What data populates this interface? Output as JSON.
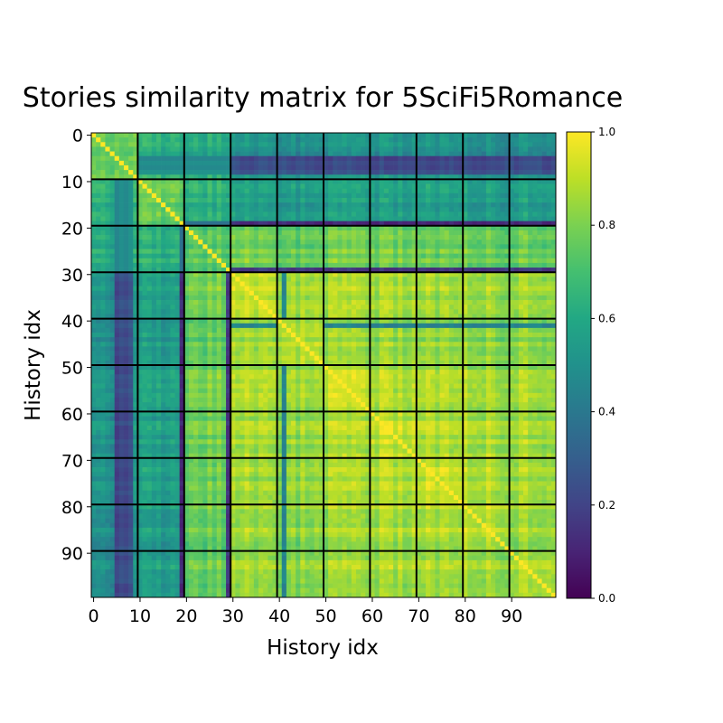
{
  "chart_data": {
    "type": "heatmap",
    "title": "Stories similarity matrix for 5SciFi5Romance",
    "xlabel": "History idx",
    "ylabel": "History idx",
    "size": 100,
    "block_size": 10,
    "x_ticks": [
      0,
      10,
      20,
      30,
      40,
      50,
      60,
      70,
      80,
      90
    ],
    "y_ticks": [
      0,
      10,
      20,
      30,
      40,
      50,
      60,
      70,
      80,
      90
    ],
    "colorbar": {
      "min": 0.0,
      "max": 1.0,
      "ticks": [
        "0.0",
        "0.2",
        "0.4",
        "0.6",
        "0.8",
        "1.0"
      ]
    },
    "colormap": "viridis",
    "block_means": [
      [
        0.74,
        0.62,
        0.6,
        0.5,
        0.47,
        0.5,
        0.5,
        0.5,
        0.48,
        0.49
      ],
      [
        0.62,
        0.76,
        0.63,
        0.55,
        0.53,
        0.55,
        0.55,
        0.55,
        0.54,
        0.55
      ],
      [
        0.6,
        0.63,
        0.74,
        0.78,
        0.75,
        0.78,
        0.78,
        0.77,
        0.77,
        0.77
      ],
      [
        0.5,
        0.55,
        0.78,
        0.9,
        0.85,
        0.86,
        0.86,
        0.85,
        0.85,
        0.85
      ],
      [
        0.47,
        0.53,
        0.75,
        0.85,
        0.87,
        0.83,
        0.83,
        0.83,
        0.82,
        0.82
      ],
      [
        0.5,
        0.55,
        0.78,
        0.86,
        0.83,
        0.89,
        0.86,
        0.86,
        0.85,
        0.85
      ],
      [
        0.5,
        0.55,
        0.78,
        0.86,
        0.83,
        0.86,
        0.9,
        0.87,
        0.87,
        0.86
      ],
      [
        0.5,
        0.55,
        0.77,
        0.85,
        0.83,
        0.86,
        0.87,
        0.9,
        0.87,
        0.86
      ],
      [
        0.48,
        0.54,
        0.77,
        0.85,
        0.82,
        0.85,
        0.87,
        0.87,
        0.9,
        0.86
      ],
      [
        0.49,
        0.55,
        0.77,
        0.85,
        0.82,
        0.85,
        0.86,
        0.86,
        0.86,
        0.89
      ]
    ],
    "low_index_profile": [
      {
        "index": 5,
        "value": 0.2
      },
      {
        "index": 6,
        "value": 0.24
      },
      {
        "index": 7,
        "value": 0.22
      },
      {
        "index": 8,
        "value": 0.26
      },
      {
        "index": 19,
        "value": 0.12
      },
      {
        "index": 29,
        "value": 0.16
      },
      {
        "index": 41,
        "value": 0.45
      }
    ],
    "diagonal": 1.0,
    "grid": true,
    "legend": "colorbar-right"
  }
}
